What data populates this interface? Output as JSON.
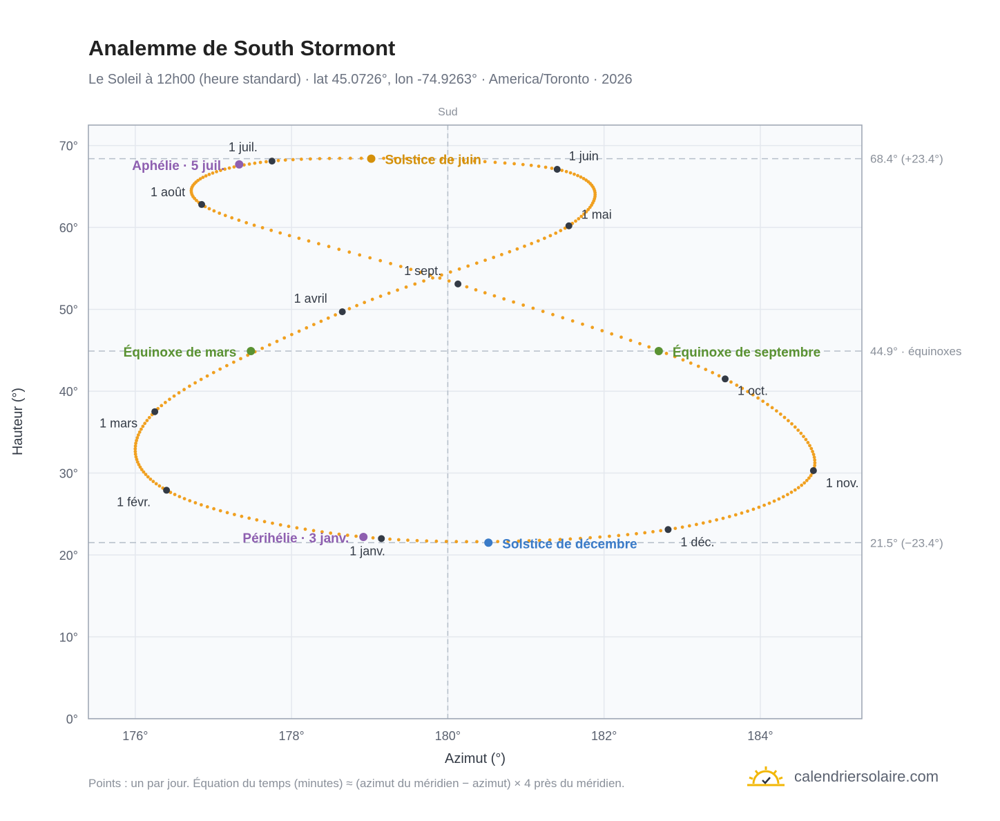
{
  "header": {
    "title": "Analemme de South Stormont",
    "subtitle": "Le Soleil à 12h00 (heure standard) · lat 45.0726°, lon -74.9263° · America/Toronto · 2026"
  },
  "footer": {
    "note": "Points : un par jour. Équation du temps (minutes) ≈ (azimut du méridien − azimut) × 4 près du méridien.",
    "brand": "calendriersolaire.com"
  },
  "colors": {
    "curve": "#f0a020",
    "month_marker": "#333a45",
    "june_solstice": "#d4900a",
    "december_solstice": "#3a7bc8",
    "equinox": "#5a9232",
    "apsis": "#8e5fb0",
    "grid": "#e4e8ee",
    "plot_bg": "#f8fafc",
    "frame": "#9aa3b0",
    "reference_line": "#b5bec9"
  },
  "chart_data": {
    "type": "scatter",
    "xlabel": "Azimut (°)",
    "ylabel": "Hauteur (°)",
    "xlim": [
      175.4,
      185.3
    ],
    "ylim": [
      0,
      72.5
    ],
    "x_ticks": [
      176,
      178,
      180,
      182,
      184
    ],
    "x_tick_labels": [
      "176°",
      "178°",
      "180°",
      "182°",
      "184°"
    ],
    "y_ticks": [
      0,
      10,
      20,
      30,
      40,
      50,
      60,
      70
    ],
    "y_tick_labels": [
      "0°",
      "10°",
      "20°",
      "30°",
      "40°",
      "50°",
      "60°",
      "70°"
    ],
    "grid": true,
    "south_line": {
      "x": 180,
      "label": "Sud"
    },
    "reference_lines": [
      {
        "y": 68.4,
        "label": "68.4° (+23.4°)"
      },
      {
        "y": 44.9,
        "label": "44.9° · équinoxes"
      },
      {
        "y": 21.5,
        "label": "21.5° (−23.4°)"
      }
    ],
    "analemma_path": [
      {
        "x": 179.15,
        "y": 22.0
      },
      {
        "x": 176.4,
        "y": 27.9
      },
      {
        "x": 176.25,
        "y": 37.5
      },
      {
        "x": 178.65,
        "y": 49.7
      },
      {
        "x": 181.55,
        "y": 60.2
      },
      {
        "x": 181.4,
        "y": 67.1
      },
      {
        "x": 177.75,
        "y": 68.1
      },
      {
        "x": 176.85,
        "y": 62.8
      },
      {
        "x": 180.13,
        "y": 53.1
      },
      {
        "x": 183.55,
        "y": 41.5
      },
      {
        "x": 184.68,
        "y": 30.3
      },
      {
        "x": 182.82,
        "y": 23.1
      }
    ],
    "month_markers": [
      {
        "label": "1 janv.",
        "x": 179.15,
        "y": 22.0
      },
      {
        "label": "1 févr.",
        "x": 176.4,
        "y": 27.9
      },
      {
        "label": "1 mars",
        "x": 176.25,
        "y": 37.5
      },
      {
        "label": "1 avril",
        "x": 178.65,
        "y": 49.7
      },
      {
        "label": "1 mai",
        "x": 181.55,
        "y": 60.2
      },
      {
        "label": "1 juin",
        "x": 181.4,
        "y": 67.1
      },
      {
        "label": "1 juil.",
        "x": 177.75,
        "y": 68.1
      },
      {
        "label": "1 août",
        "x": 176.85,
        "y": 62.8
      },
      {
        "label": "1 sept.",
        "x": 180.13,
        "y": 53.1
      },
      {
        "label": "1 oct.",
        "x": 183.55,
        "y": 41.5
      },
      {
        "label": "1 nov.",
        "x": 184.68,
        "y": 30.3
      },
      {
        "label": "1 déc.",
        "x": 182.82,
        "y": 23.1
      }
    ],
    "special_points": [
      {
        "label": "Solstice de juin",
        "x": 179.02,
        "y": 68.4,
        "color": "#d4900a"
      },
      {
        "label": "Solstice de décembre",
        "x": 180.52,
        "y": 21.5,
        "color": "#3a7bc8"
      },
      {
        "label": "Équinoxe de mars",
        "x": 177.48,
        "y": 44.9,
        "color": "#5a9232"
      },
      {
        "label": "Équinoxe de septembre",
        "x": 182.7,
        "y": 44.9,
        "color": "#5a9232"
      },
      {
        "label": "Aphélie · 5 juil.",
        "x": 177.33,
        "y": 67.7,
        "color": "#8e5fb0"
      },
      {
        "label": "Périhélie · 3 janv.",
        "x": 178.92,
        "y": 22.2,
        "color": "#8e5fb0"
      }
    ]
  }
}
